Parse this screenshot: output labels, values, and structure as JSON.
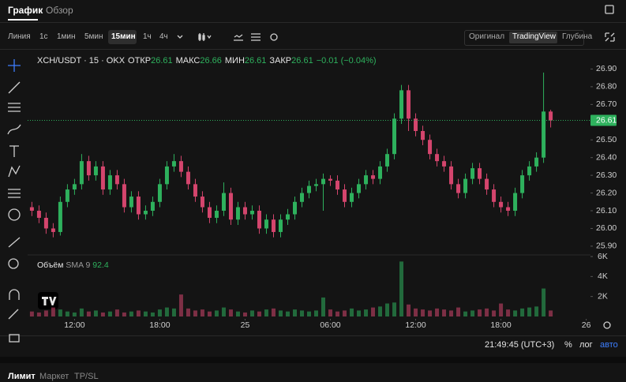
{
  "tabs": [
    "График",
    "Обзор"
  ],
  "intervals": [
    "Линия",
    "1с",
    "1мин",
    "5мин",
    "15мин",
    "1ч",
    "4ч"
  ],
  "views": [
    "Оригинал",
    "TradingView",
    "Глубина"
  ],
  "chart_data": {
    "type": "candlestick",
    "title": "XCH/USDT · 15 · OKX",
    "stats": [
      {
        "label": "ОТКР",
        "value": "26.61"
      },
      {
        "label": "МАКС",
        "value": "26.66"
      },
      {
        "label": "МИН",
        "value": "26.61"
      },
      {
        "label": "ЗАКР",
        "value": "26.61"
      }
    ],
    "change": "−0.01 (−0.04%)",
    "up_color": "#2eb15d",
    "down_color": "#d4456d",
    "ohlc": [
      [
        26.12,
        26.15,
        26.07,
        26.1
      ],
      [
        26.1,
        26.13,
        26.03,
        26.06
      ],
      [
        26.06,
        26.09,
        25.97,
        26.0
      ],
      [
        26.0,
        26.03,
        25.95,
        25.98
      ],
      [
        25.98,
        26.18,
        25.96,
        26.15
      ],
      [
        26.15,
        26.25,
        26.12,
        26.22
      ],
      [
        26.22,
        26.28,
        26.19,
        26.25
      ],
      [
        26.25,
        26.42,
        26.22,
        26.38
      ],
      [
        26.38,
        26.41,
        26.27,
        26.3
      ],
      [
        26.3,
        26.38,
        26.27,
        26.35
      ],
      [
        26.35,
        26.38,
        26.19,
        26.22
      ],
      [
        26.22,
        26.33,
        26.19,
        26.3
      ],
      [
        26.3,
        26.33,
        26.22,
        26.25
      ],
      [
        26.25,
        26.28,
        26.09,
        26.12
      ],
      [
        26.12,
        26.21,
        26.09,
        26.18
      ],
      [
        26.18,
        26.21,
        26.05,
        26.08
      ],
      [
        26.08,
        26.13,
        26.05,
        26.1
      ],
      [
        26.1,
        26.18,
        26.07,
        26.15
      ],
      [
        26.15,
        26.28,
        26.12,
        26.25
      ],
      [
        26.25,
        26.38,
        26.22,
        26.35
      ],
      [
        26.35,
        26.42,
        26.32,
        26.38
      ],
      [
        26.38,
        26.41,
        26.29,
        26.32
      ],
      [
        26.32,
        26.35,
        26.22,
        26.25
      ],
      [
        26.25,
        26.28,
        26.15,
        26.18
      ],
      [
        26.18,
        26.21,
        26.09,
        26.12
      ],
      [
        26.12,
        26.15,
        26.03,
        26.06
      ],
      [
        26.06,
        26.13,
        26.03,
        26.1
      ],
      [
        26.1,
        26.26,
        26.07,
        26.2
      ],
      [
        26.2,
        26.23,
        26.02,
        26.05
      ],
      [
        26.05,
        26.15,
        26.02,
        26.12
      ],
      [
        26.12,
        26.15,
        26.05,
        26.08
      ],
      [
        26.08,
        26.13,
        26.05,
        26.1
      ],
      [
        26.1,
        26.13,
        25.97,
        26.0
      ],
      [
        26.0,
        26.08,
        25.97,
        26.05
      ],
      [
        26.05,
        26.08,
        25.95,
        25.98
      ],
      [
        25.98,
        26.08,
        25.95,
        26.05
      ],
      [
        26.05,
        26.11,
        26.02,
        26.08
      ],
      [
        26.08,
        26.18,
        26.05,
        26.15
      ],
      [
        26.15,
        26.23,
        26.12,
        26.2
      ],
      [
        26.2,
        26.27,
        26.17,
        26.24
      ],
      [
        26.24,
        26.28,
        26.21,
        26.25
      ],
      [
        26.25,
        26.31,
        26.1,
        26.28
      ],
      [
        26.28,
        26.3,
        26.24,
        26.27
      ],
      [
        26.27,
        26.3,
        26.19,
        26.22
      ],
      [
        26.22,
        26.25,
        26.12,
        26.15
      ],
      [
        26.15,
        26.23,
        26.12,
        26.2
      ],
      [
        26.2,
        26.28,
        26.17,
        26.25
      ],
      [
        26.25,
        26.33,
        26.22,
        26.3
      ],
      [
        26.3,
        26.33,
        26.25,
        26.28
      ],
      [
        26.28,
        26.38,
        26.25,
        26.35
      ],
      [
        26.35,
        26.45,
        26.32,
        26.42
      ],
      [
        26.42,
        26.65,
        26.39,
        26.62
      ],
      [
        26.62,
        26.81,
        26.59,
        26.78
      ],
      [
        26.78,
        26.81,
        26.55,
        26.62
      ],
      [
        26.62,
        26.65,
        26.52,
        26.55
      ],
      [
        26.55,
        26.58,
        26.47,
        26.5
      ],
      [
        26.5,
        26.53,
        26.39,
        26.42
      ],
      [
        26.42,
        26.45,
        26.35,
        26.38
      ],
      [
        26.38,
        26.41,
        26.32,
        26.35
      ],
      [
        26.35,
        26.38,
        26.22,
        26.25
      ],
      [
        26.25,
        26.28,
        26.17,
        26.2
      ],
      [
        26.2,
        26.31,
        26.17,
        26.28
      ],
      [
        26.28,
        26.37,
        26.25,
        26.34
      ],
      [
        26.34,
        26.37,
        26.25,
        26.28
      ],
      [
        26.28,
        26.31,
        26.19,
        26.22
      ],
      [
        26.22,
        26.25,
        26.12,
        26.15
      ],
      [
        26.15,
        26.18,
        26.09,
        26.12
      ],
      [
        26.12,
        26.15,
        26.07,
        26.1
      ],
      [
        26.1,
        26.23,
        26.07,
        26.2
      ],
      [
        26.2,
        26.33,
        26.17,
        26.3
      ],
      [
        26.3,
        26.38,
        26.27,
        26.35
      ],
      [
        26.35,
        26.43,
        26.32,
        26.4
      ],
      [
        26.4,
        26.88,
        26.37,
        26.66
      ],
      [
        26.66,
        26.67,
        26.57,
        26.61
      ]
    ],
    "xlim": [
      -0.6,
      78.6
    ],
    "xticks": [
      {
        "value": 6,
        "label": "12:00"
      },
      {
        "value": 18,
        "label": "18:00"
      },
      {
        "value": 30,
        "label": "25"
      },
      {
        "value": 42,
        "label": "06:00"
      },
      {
        "value": 54,
        "label": "12:00"
      },
      {
        "value": 66,
        "label": "18:00"
      },
      {
        "value": 78,
        "label": "26"
      }
    ],
    "ylim": [
      25.855,
      27.0
    ],
    "yticks": [
      {
        "value": 25.9,
        "label": "25.90"
      },
      {
        "value": 26.0,
        "label": "26.00"
      },
      {
        "value": 26.1,
        "label": "26.10"
      },
      {
        "value": 26.2,
        "label": "26.20"
      },
      {
        "value": 26.3,
        "label": "26.30"
      },
      {
        "value": 26.4,
        "label": "26.40"
      },
      {
        "value": 26.5,
        "label": "26.50"
      },
      {
        "value": 26.7,
        "label": "26.70"
      },
      {
        "value": 26.8,
        "label": "26.80"
      },
      {
        "value": 26.9,
        "label": "26.90"
      }
    ],
    "last_price": 26.61,
    "volume": {
      "title": "Объём",
      "indicator": "SMA 9",
      "indicator_value": "92.4",
      "values": [
        500,
        400,
        600,
        900,
        700,
        500,
        400,
        800,
        500,
        600,
        400,
        500,
        700,
        400,
        500,
        600,
        500,
        400,
        700,
        900,
        800,
        2200,
        800,
        600,
        700,
        500,
        600,
        900,
        700,
        500,
        400,
        600,
        500,
        700,
        800,
        600,
        500,
        700,
        600,
        500,
        600,
        1900,
        700,
        500,
        600,
        800,
        600,
        700,
        900,
        1000,
        1300,
        1400,
        5500,
        1200,
        800,
        700,
        600,
        800,
        700,
        600,
        900,
        500,
        600,
        700,
        800,
        600,
        1300,
        700,
        600,
        800,
        900,
        1000,
        2800,
        600
      ],
      "ylim": [
        0,
        6000
      ],
      "yticks": [
        {
          "value": 2000,
          "label": "2K"
        },
        {
          "value": 4000,
          "label": "4K"
        },
        {
          "value": 6000,
          "label": "6K"
        }
      ]
    }
  },
  "footer": {
    "time": "21:49:45 (UTC+3)",
    "percent": "%",
    "log": "лог",
    "auto": "авто"
  },
  "order_tabs": [
    "Лимит",
    "Маркет",
    "TP/SL"
  ]
}
